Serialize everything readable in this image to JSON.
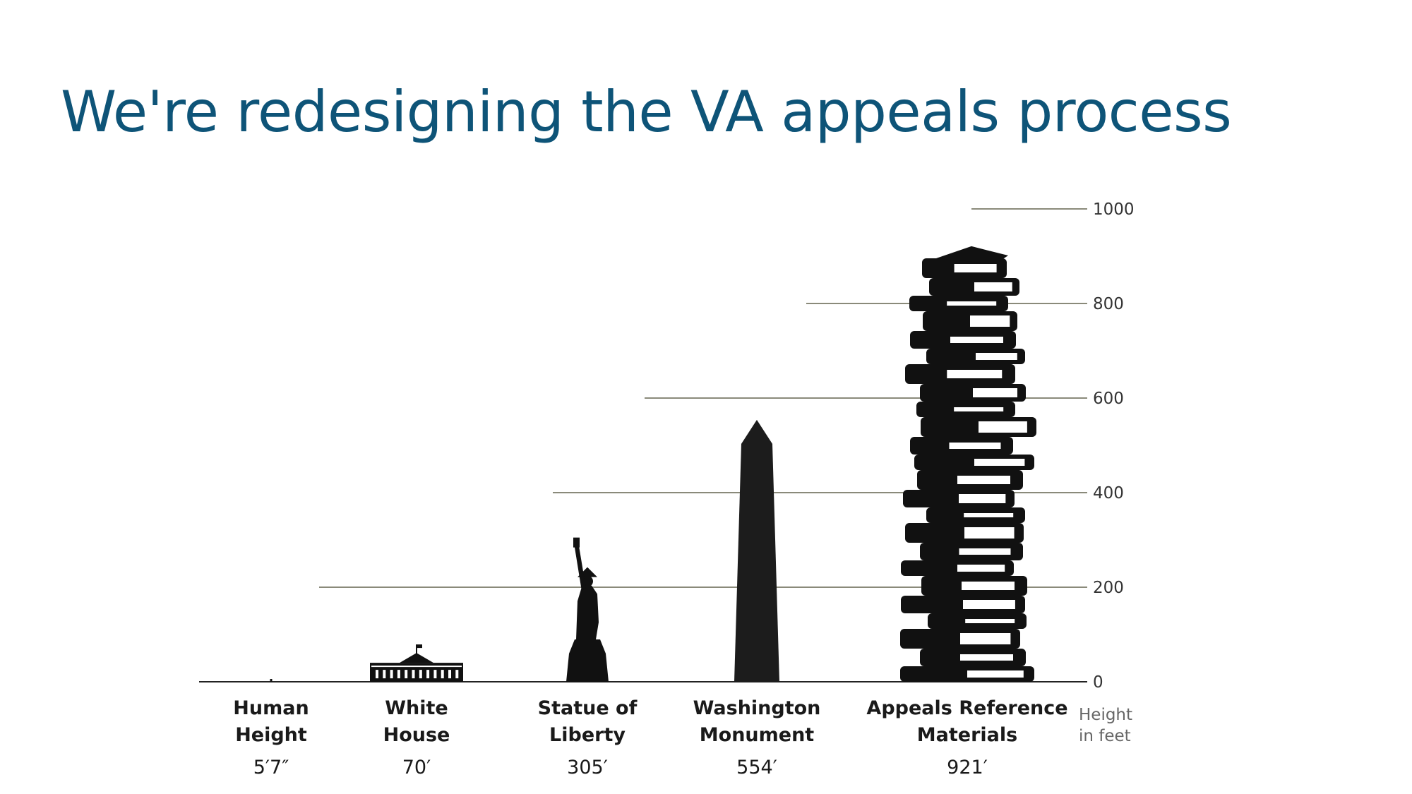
{
  "slide": {
    "title": "We're redesigning the VA appeals process"
  },
  "chart_data": {
    "type": "bar",
    "unit_note_lines": [
      "Height",
      "in feet"
    ],
    "categories": [
      {
        "name_lines": [
          "Human",
          "Height"
        ],
        "value_label": "5′7″",
        "value": 5.58,
        "icon": "person-icon"
      },
      {
        "name_lines": [
          "White",
          "House"
        ],
        "value_label": "70′",
        "value": 70,
        "icon": "white-house-icon"
      },
      {
        "name_lines": [
          "Statue of",
          "Liberty"
        ],
        "value_label": "305′",
        "value": 305,
        "icon": "statue-of-liberty-icon"
      },
      {
        "name_lines": [
          "Washington",
          "Monument"
        ],
        "value_label": "554′",
        "value": 554,
        "icon": "obelisk-icon"
      },
      {
        "name_lines": [
          "Appeals Reference",
          "Materials"
        ],
        "value_label": "921′",
        "value": 921,
        "icon": "book-stack-icon"
      }
    ],
    "y_ticks": [
      "0",
      "200",
      "400",
      "600",
      "800",
      "1000"
    ],
    "ylim": [
      0,
      1000
    ],
    "colors": {
      "silhouette": "#111111",
      "gridline": "#8a8a7a",
      "title": "#0e5478"
    }
  }
}
